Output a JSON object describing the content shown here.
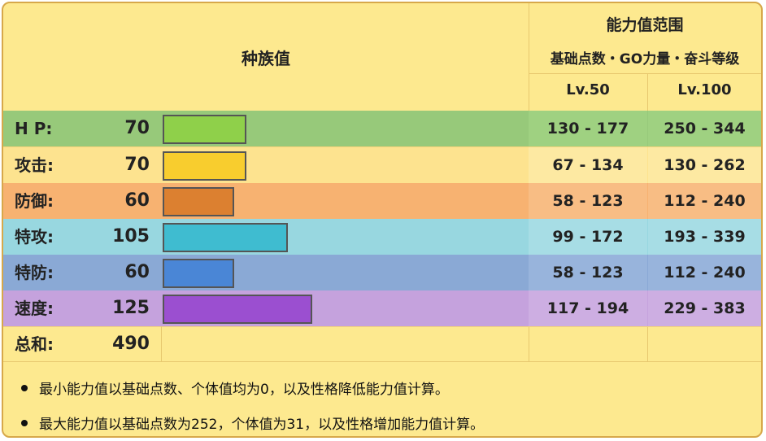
{
  "header": {
    "base_stats_title": "种族值",
    "range_title": "能力值范围",
    "range_subtitle": "基础点数・GO力量・奋斗等级",
    "lv50": "Lv.50",
    "lv100": "Lv.100"
  },
  "stats": [
    {
      "key": "hp",
      "label": "H P:",
      "value": 70,
      "range50": "130 - 177",
      "range100": "250 - 344",
      "row_color": "#97c97a",
      "cell_color": "#9fd181",
      "bar_color": "#8fd04a"
    },
    {
      "key": "atk",
      "label": "攻击:",
      "value": 70,
      "range50": "67 - 134",
      "range100": "130 - 262",
      "row_color": "#fde38f",
      "cell_color": "#fde9a2",
      "bar_color": "#f8cd2e"
    },
    {
      "key": "def",
      "label": "防御:",
      "value": 60,
      "range50": "58 - 123",
      "range100": "112 - 240",
      "row_color": "#f7b271",
      "cell_color": "#f8bd84",
      "bar_color": "#dc8030"
    },
    {
      "key": "spa",
      "label": "特攻:",
      "value": 105,
      "range50": "99 - 172",
      "range100": "193 - 339",
      "row_color": "#98d7e0",
      "cell_color": "#a7dde5",
      "bar_color": "#3fbcd0"
    },
    {
      "key": "spd",
      "label": "特防:",
      "value": 60,
      "range50": "58 - 123",
      "range100": "112 - 240",
      "row_color": "#8aa9d5",
      "cell_color": "#98b4dc",
      "bar_color": "#4a86d6"
    },
    {
      "key": "spe",
      "label": "速度:",
      "value": 125,
      "range50": "117 - 194",
      "range100": "229 - 383",
      "row_color": "#c5a2dd",
      "cell_color": "#cdaee2",
      "bar_color": "#9b4fd0"
    }
  ],
  "total": {
    "label": "总和:",
    "value": 490
  },
  "notes": [
    "最小能力值以基础点数、个体值均为0，以及性格降低能力值计算。",
    "最大能力值以基础点数为252，个体值为31，以及性格增加能力值计算。"
  ]
}
